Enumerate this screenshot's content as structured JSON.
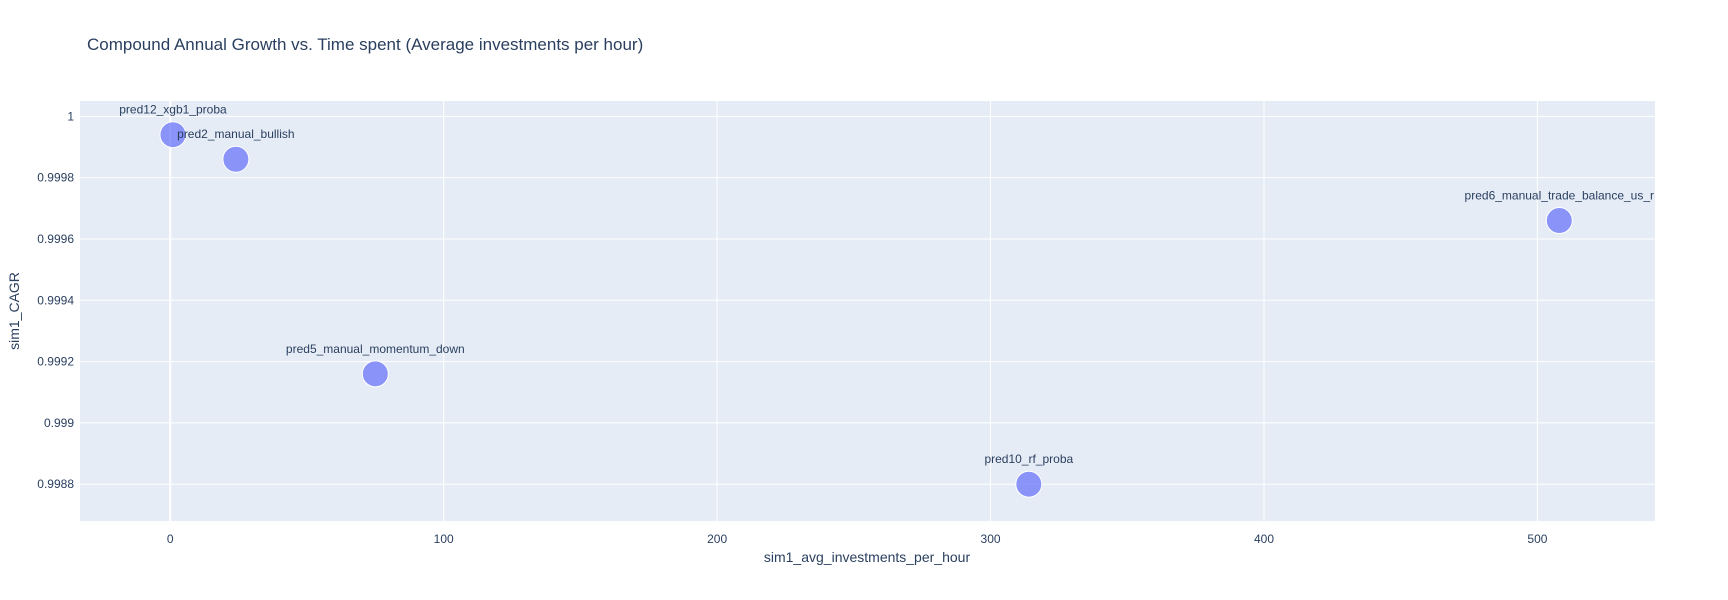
{
  "chart_data": {
    "type": "scatter",
    "title": "Compound Annual Growth vs. Time spent (Average investments per hour)",
    "xlabel": "sim1_avg_investments_per_hour",
    "ylabel": "sim1_CAGR",
    "xlim": [
      -33,
      543
    ],
    "ylim": [
      0.99868,
      1.00005
    ],
    "x_ticks": [
      0,
      100,
      200,
      300,
      400,
      500
    ],
    "x_tick_labels": [
      "0",
      "100",
      "200",
      "300",
      "400",
      "500"
    ],
    "y_ticks": [
      0.9988,
      0.999,
      0.9992,
      0.9994,
      0.9996,
      0.9998,
      1
    ],
    "y_tick_labels": [
      "0.9988",
      "0.999",
      "0.9992",
      "0.9994",
      "0.9996",
      "0.9998",
      "1"
    ],
    "grid": true,
    "marker_color": "#636efa",
    "points": [
      {
        "label": "pred12_xgb1_proba",
        "x": 1,
        "y": 0.99994
      },
      {
        "label": "pred2_manual_bullish",
        "x": 24,
        "y": 0.99986
      },
      {
        "label": "pred6_manual_trade_balance_us_r",
        "x": 508,
        "y": 0.99966
      },
      {
        "label": "pred5_manual_momentum_down",
        "x": 75,
        "y": 0.99916
      },
      {
        "label": "pred10_rf_proba",
        "x": 314,
        "y": 0.9988
      }
    ]
  }
}
